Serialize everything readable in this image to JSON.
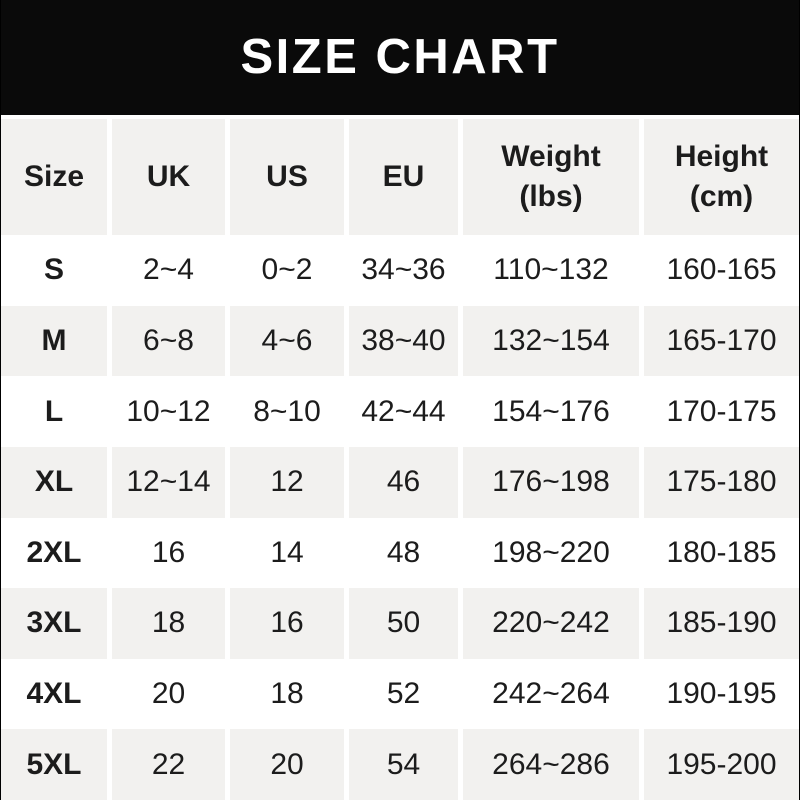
{
  "banner": {
    "title": "SIZE CHART"
  },
  "header": {
    "size": "Size",
    "uk": "UK",
    "us": "US",
    "eu": "EU",
    "weight_label": "Weight",
    "weight_sub": "(lbs)",
    "height_label": "Height",
    "height_sub": "(cm)"
  },
  "colors": {
    "banner_bg": "#0a0a0a",
    "banner_text": "#ffffff",
    "alt_row_bg": "#f2f1ef",
    "text": "#1c1c1c",
    "row_bg": "#ffffff"
  },
  "chart_data": {
    "type": "table",
    "title": "SIZE CHART",
    "columns": [
      "Size",
      "UK",
      "US",
      "EU",
      "Weight (lbs)",
      "Height (cm)"
    ],
    "rows": [
      [
        "S",
        "2~4",
        "0~2",
        "34~36",
        "110~132",
        "160-165"
      ],
      [
        "M",
        "6~8",
        "4~6",
        "38~40",
        "132~154",
        "165-170"
      ],
      [
        "L",
        "10~12",
        "8~10",
        "42~44",
        "154~176",
        "170-175"
      ],
      [
        "XL",
        "12~14",
        "12",
        "46",
        "176~198",
        "175-180"
      ],
      [
        "2XL",
        "16",
        "14",
        "48",
        "198~220",
        "180-185"
      ],
      [
        "3XL",
        "18",
        "16",
        "50",
        "220~242",
        "185-190"
      ],
      [
        "4XL",
        "20",
        "18",
        "52",
        "242~264",
        "190-195"
      ],
      [
        "5XL",
        "22",
        "20",
        "54",
        "264~286",
        "195-200"
      ]
    ]
  }
}
